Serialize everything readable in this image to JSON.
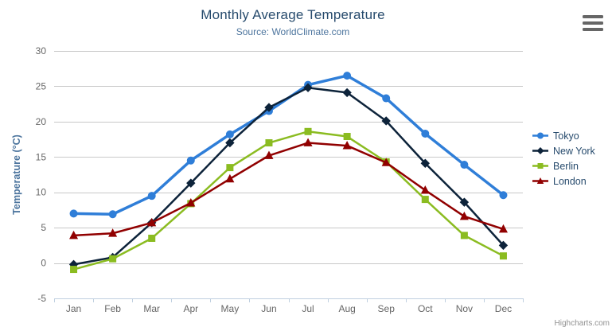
{
  "header": {
    "title": "Monthly Average Temperature",
    "subtitle": "Source: WorldClimate.com"
  },
  "credits": "Highcharts.com",
  "export_menu": {
    "icon": "hamburger-icon",
    "color": "#666666"
  },
  "colors": {
    "title_text": "#274b6d",
    "subtitle_text": "#4d759e",
    "axis_label": "#666666",
    "axis_title": "#4d759e",
    "gridline": "#c8c8c8",
    "axis_line": "#c0d0e0",
    "legend_text": "#274b6d",
    "credits_text": "#909090"
  },
  "chart_data": {
    "type": "line",
    "title": "Monthly Average Temperature",
    "subtitle": "Source: WorldClimate.com",
    "categories": [
      "Jan",
      "Feb",
      "Mar",
      "Apr",
      "May",
      "Jun",
      "Jul",
      "Aug",
      "Sep",
      "Oct",
      "Nov",
      "Dec"
    ],
    "series": [
      {
        "name": "Tokyo",
        "color": "#2f7ed8",
        "marker": "circle",
        "line_width": 3.5,
        "values": [
          7.0,
          6.9,
          9.5,
          14.5,
          18.2,
          21.5,
          25.2,
          26.5,
          23.3,
          18.3,
          13.9,
          9.6
        ]
      },
      {
        "name": "New York",
        "color": "#0d233a",
        "marker": "diamond",
        "line_width": 2.5,
        "values": [
          -0.2,
          0.8,
          5.7,
          11.3,
          17.0,
          22.0,
          24.8,
          24.1,
          20.1,
          14.1,
          8.6,
          2.5
        ]
      },
      {
        "name": "Berlin",
        "color": "#8bbc21",
        "marker": "square",
        "line_width": 2.5,
        "values": [
          -0.9,
          0.6,
          3.5,
          8.4,
          13.5,
          17.0,
          18.6,
          17.9,
          14.3,
          9.0,
          3.9,
          1.0
        ]
      },
      {
        "name": "London",
        "color": "#910000",
        "marker": "triangle",
        "line_width": 2.5,
        "values": [
          3.9,
          4.2,
          5.7,
          8.5,
          11.9,
          15.2,
          17.0,
          16.6,
          14.2,
          10.3,
          6.6,
          4.8
        ]
      }
    ],
    "xlabel": "",
    "ylabel": "Temperature (°C)",
    "ylim": [
      -5,
      30
    ],
    "ytick_interval": 5,
    "grid": true,
    "legend_position": "right"
  }
}
